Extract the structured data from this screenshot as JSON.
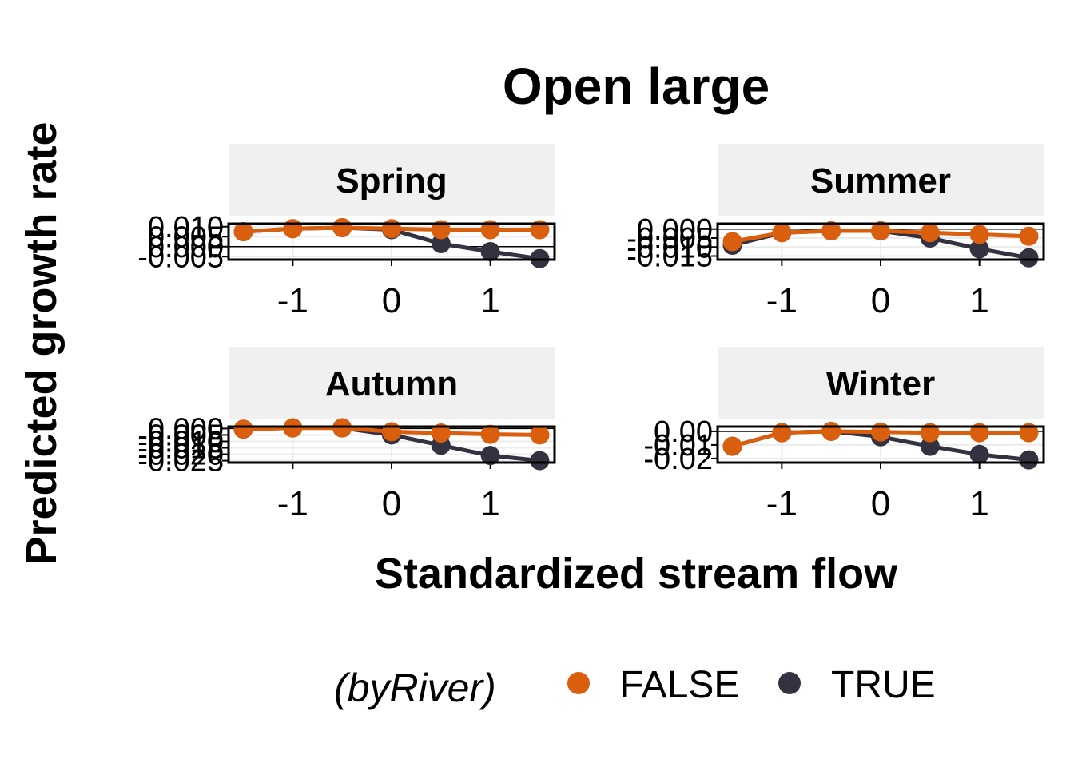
{
  "chart_data": {
    "type": "line",
    "title": "Open large",
    "xlabel": "Standardized stream flow",
    "ylabel": "Predicted growth rate",
    "x": [
      -1.5,
      -1.0,
      -0.5,
      0.0,
      0.5,
      1.0,
      1.5
    ],
    "xlim": [
      -1.65,
      1.65
    ],
    "xticks": [
      -1,
      0,
      1
    ],
    "legend": {
      "title": "(byRiver)",
      "position": "bottom",
      "entries": [
        {
          "label": "FALSE",
          "color": "#d95f0e"
        },
        {
          "label": "TRUE",
          "color": "#323240"
        }
      ]
    },
    "colors": {
      "FALSE": "#d95f0e",
      "TRUE": "#323240"
    },
    "panels": [
      {
        "label": "Spring",
        "ylim": [
          -0.0065,
          0.0115
        ],
        "yticks": [
          -0.005,
          0.0,
          0.005,
          0.01
        ],
        "ytick_labels": [
          "-0.005",
          "0.000",
          "0.005",
          "0.010"
        ],
        "series": [
          {
            "name": "FALSE",
            "values": [
              0.0075,
              0.009,
              0.0095,
              0.009,
              0.0085,
              0.0085,
              0.0085
            ]
          },
          {
            "name": "TRUE",
            "values": [
              0.0075,
              0.009,
              0.0095,
              0.0085,
              0.0015,
              -0.0025,
              -0.006
            ]
          }
        ]
      },
      {
        "label": "Summer",
        "ylim": [
          -0.017,
          0.003
        ],
        "yticks": [
          -0.015,
          -0.01,
          -0.005,
          0.0
        ],
        "ytick_labels": [
          "-0.015",
          "-0.010",
          "-0.005",
          "0.000"
        ],
        "series": [
          {
            "name": "FALSE",
            "values": [
              -0.007,
              -0.002,
              -0.001,
              -0.001,
              -0.002,
              -0.003,
              -0.004
            ]
          },
          {
            "name": "TRUE",
            "values": [
              -0.009,
              -0.002,
              -0.001,
              -0.001,
              -0.005,
              -0.011,
              -0.016
            ]
          }
        ]
      },
      {
        "label": "Autumn",
        "ylim": [
          -0.0265,
          0.0015
        ],
        "yticks": [
          -0.025,
          -0.02,
          -0.015,
          -0.01,
          -0.005,
          0.0
        ],
        "ytick_labels": [
          "-0.025",
          "-0.020",
          "-0.015",
          "-0.010",
          "-0.005",
          "0.000"
        ],
        "series": [
          {
            "name": "FALSE",
            "values": [
              -0.0005,
              0.0005,
              0.0005,
              -0.0025,
              -0.0035,
              -0.0045,
              -0.005
            ]
          },
          {
            "name": "TRUE",
            "values": [
              -0.0005,
              0.0005,
              0.0005,
              -0.005,
              -0.013,
              -0.021,
              -0.025
            ]
          }
        ]
      },
      {
        "label": "Winter",
        "ylim": [
          -0.023,
          0.0035
        ],
        "yticks": [
          -0.02,
          -0.01,
          0.0
        ],
        "ytick_labels": [
          "-0.02",
          "-0.01",
          "0.00"
        ],
        "series": [
          {
            "name": "FALSE",
            "values": [
              -0.011,
              -0.001,
              0.0,
              -0.0005,
              -0.001,
              -0.001,
              -0.001
            ]
          },
          {
            "name": "TRUE",
            "values": [
              -0.011,
              -0.001,
              0.0,
              -0.004,
              -0.011,
              -0.017,
              -0.021
            ]
          }
        ]
      }
    ]
  }
}
